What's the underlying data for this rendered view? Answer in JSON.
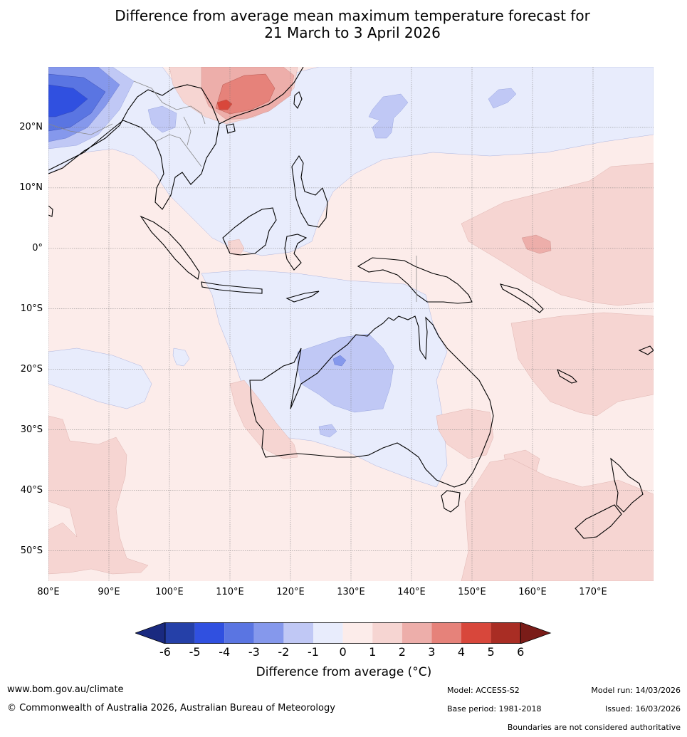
{
  "title": {
    "line1": "Difference from average mean maximum temperature forecast for",
    "line2": "21 March to 3 April 2026"
  },
  "map": {
    "lon_range": [
      80,
      180
    ],
    "lat_range": [
      -55,
      30
    ],
    "lat_ticks": [
      {
        "value": 20,
        "label": "20°N"
      },
      {
        "value": 10,
        "label": "10°N"
      },
      {
        "value": 0,
        "label": "0°"
      },
      {
        "value": -10,
        "label": "10°S"
      },
      {
        "value": -20,
        "label": "20°S"
      },
      {
        "value": -30,
        "label": "30°S"
      },
      {
        "value": -40,
        "label": "40°S"
      },
      {
        "value": -50,
        "label": "50°S"
      }
    ],
    "lon_ticks": [
      {
        "value": 80,
        "label": "80°E"
      },
      {
        "value": 90,
        "label": "90°E"
      },
      {
        "value": 100,
        "label": "100°E"
      },
      {
        "value": 110,
        "label": "110°E"
      },
      {
        "value": 120,
        "label": "120°E"
      },
      {
        "value": 130,
        "label": "130°E"
      },
      {
        "value": 140,
        "label": "140°E"
      },
      {
        "value": 150,
        "label": "150°E"
      },
      {
        "value": 160,
        "label": "160°E"
      },
      {
        "value": 170,
        "label": "170°E"
      }
    ]
  },
  "colorbar": {
    "ticks": [
      "-6",
      "-5",
      "-4",
      "-3",
      "-2",
      "-1",
      "0",
      "1",
      "2",
      "3",
      "4",
      "5",
      "6"
    ],
    "colors": [
      "#2540a8",
      "#3050e0",
      "#5a75e2",
      "#8598ec",
      "#c0c8f5",
      "#e8ecfc",
      "#fcecea",
      "#f6d5d2",
      "#edaeaa",
      "#e6827a",
      "#d8473b",
      "#a92d24"
    ],
    "extend_low": "#1a2a80",
    "extend_high": "#7a1c18",
    "label": "Difference from average (°C)"
  },
  "footer": {
    "website": "www.bom.gov.au/climate",
    "copyright": "© Commonwealth of Australia 2026, Australian Bureau of Meteorology",
    "model": "Model: ACCESS-S2",
    "base_period": "Base period: 1981-2018",
    "model_run": "Model run: 14/03/2026",
    "issued": "Issued: 16/03/2026",
    "disclaimer": "Boundaries are not considered authoritative"
  }
}
